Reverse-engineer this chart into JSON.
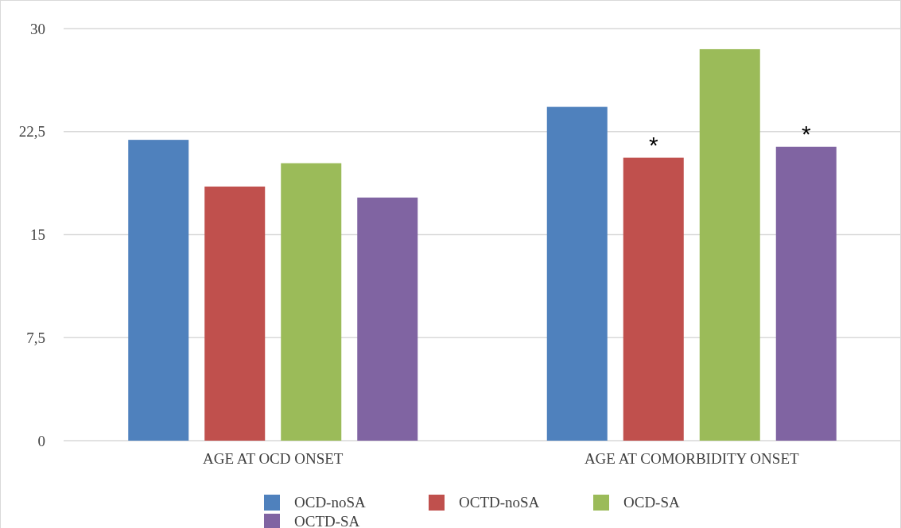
{
  "chart_data": {
    "type": "bar",
    "categories": [
      "AGE AT OCD ONSET",
      "AGE AT COMORBIDITY ONSET"
    ],
    "series": [
      {
        "name": "OCD-noSA",
        "color": "#4f81bd",
        "values": [
          21.9,
          24.3
        ]
      },
      {
        "name": "OCTD-noSA",
        "color": "#c0504d",
        "values": [
          18.5,
          20.6
        ]
      },
      {
        "name": "OCD-SA",
        "color": "#9bbb59",
        "values": [
          20.2,
          28.5
        ]
      },
      {
        "name": "OCTD-SA",
        "color": "#8064a2",
        "values": [
          17.7,
          21.4
        ]
      }
    ],
    "ylim": [
      0,
      30
    ],
    "yticks": [
      0,
      {
        "value": 7.5,
        "label": "7,5"
      },
      15,
      {
        "value": 22.5,
        "label": "22,5"
      },
      30
    ],
    "grid": "y",
    "legend": "bottom",
    "annotations": [
      "*",
      "*"
    ]
  }
}
